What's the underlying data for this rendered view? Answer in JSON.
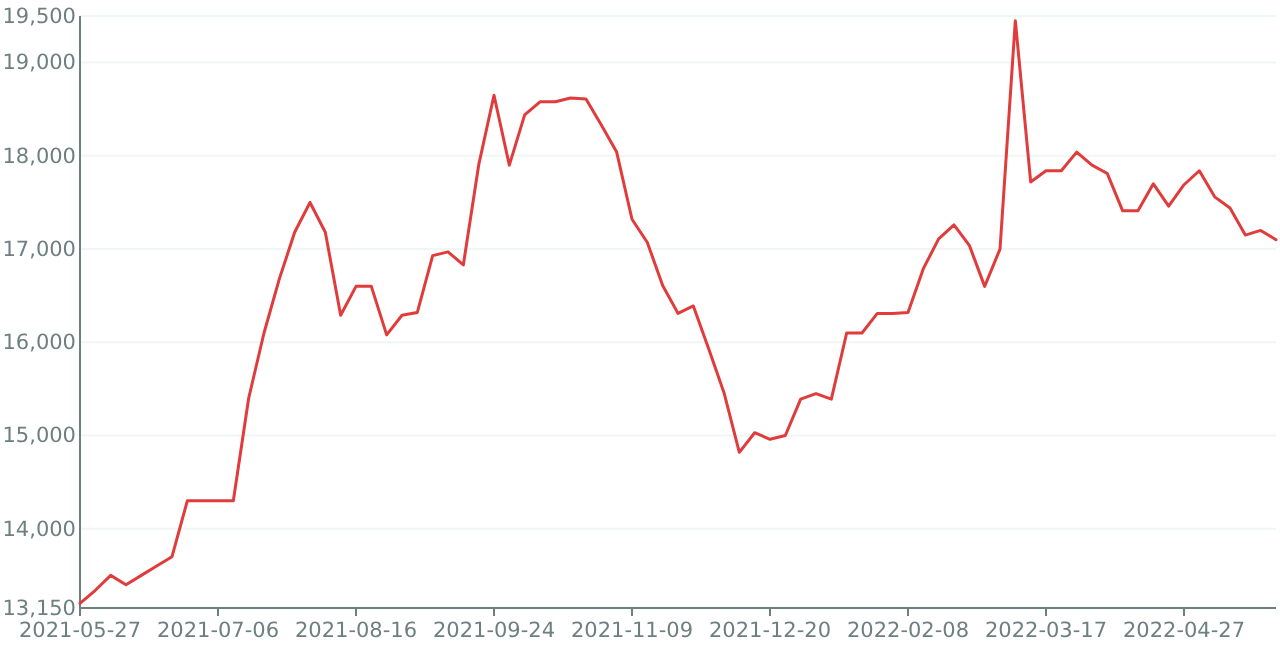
{
  "chart_data": {
    "type": "line",
    "categories": [
      "2021-05-27",
      null,
      null,
      null,
      null,
      null,
      null,
      null,
      null,
      "2021-07-06",
      null,
      null,
      null,
      null,
      null,
      null,
      null,
      null,
      "2021-08-16",
      null,
      null,
      null,
      null,
      null,
      null,
      null,
      null,
      "2021-09-24",
      null,
      null,
      null,
      null,
      null,
      null,
      null,
      null,
      "2021-11-09",
      null,
      null,
      null,
      null,
      null,
      null,
      null,
      null,
      "2021-12-20",
      null,
      null,
      null,
      null,
      null,
      null,
      null,
      null,
      "2022-02-08",
      null,
      null,
      null,
      null,
      null,
      null,
      null,
      null,
      "2022-03-17",
      null,
      null,
      null,
      null,
      null,
      null,
      null,
      null,
      "2022-04-27",
      null,
      null,
      null,
      null,
      null,
      null
    ],
    "series": [
      {
        "color": "#e03c3c",
        "values": [
          13200,
          13340,
          13500,
          13400,
          13500,
          13600,
          13700,
          14300,
          14300,
          14300,
          14300,
          15400,
          16100,
          16680,
          17180,
          17500,
          17180,
          16290,
          16600,
          16600,
          16080,
          16290,
          16320,
          16930,
          16970,
          16830,
          17900,
          18650,
          17900,
          18440,
          18580,
          18580,
          18620,
          18610,
          18330,
          18040,
          17320,
          17070,
          16610,
          16310,
          16390,
          15930,
          15460,
          14820,
          15030,
          14960,
          15000,
          15390,
          15450,
          15390,
          16100,
          16100,
          16310,
          16310,
          16320,
          16790,
          17110,
          17260,
          17040,
          16600,
          17000,
          19450,
          17720,
          17840,
          17840,
          18040,
          17900,
          17810,
          17410,
          17410,
          17700,
          17460,
          17690,
          17840,
          17560,
          17440,
          17150,
          17200,
          17100
        ]
      }
    ],
    "ylim": [
      13150,
      19500
    ],
    "yticks": [
      {
        "value": 13150,
        "label": "13,150"
      },
      {
        "value": 14000,
        "label": "14,000"
      },
      {
        "value": 15000,
        "label": "15,000"
      },
      {
        "value": 16000,
        "label": "16,000"
      },
      {
        "value": 17000,
        "label": "17,000"
      },
      {
        "value": 18000,
        "label": "18,000"
      },
      {
        "value": 19000,
        "label": "19,000"
      },
      {
        "value": 19500,
        "label": "19,500"
      }
    ],
    "grid": "y",
    "marker": "none",
    "line_style": "solid"
  }
}
